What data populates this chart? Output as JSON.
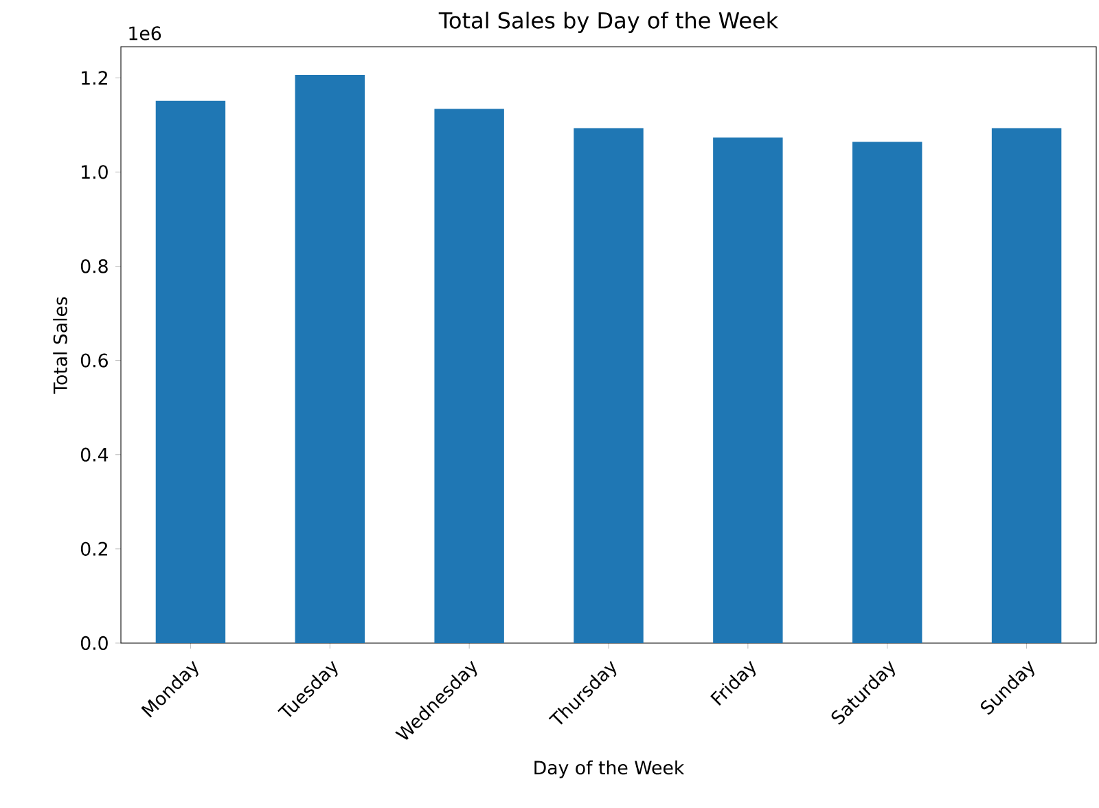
{
  "chart_data": {
    "type": "bar",
    "title": "Total Sales by Day of the Week",
    "xlabel": "Day of the Week",
    "ylabel": "Total Sales",
    "categories": [
      "Monday",
      "Tuesday",
      "Wednesday",
      "Thursday",
      "Friday",
      "Saturday",
      "Sunday"
    ],
    "values": [
      1.151,
      1.206,
      1.134,
      1.093,
      1.073,
      1.064,
      1.093
    ],
    "color": "#1f77b4",
    "ylim": [
      0,
      1.266
    ],
    "yticks": [
      {
        "value": 0,
        "label": "0.0"
      },
      {
        "value": 0.2,
        "label": "0.2"
      },
      {
        "value": 0.4,
        "label": "0.4"
      },
      {
        "value": 0.6,
        "label": "0.6"
      },
      {
        "value": 0.8,
        "label": "0.8"
      },
      {
        "value": 1.0,
        "label": "1.0"
      },
      {
        "value": 1.2,
        "label": "1.2"
      }
    ],
    "annotations": [
      "1e6"
    ]
  }
}
